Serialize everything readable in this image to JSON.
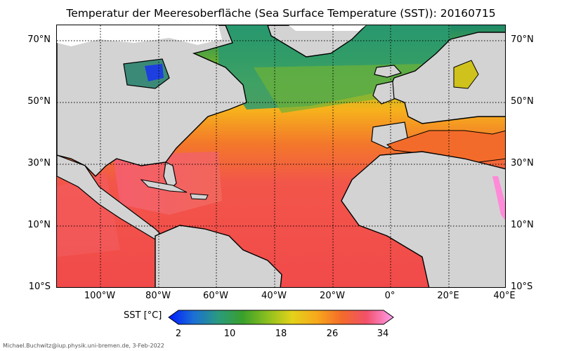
{
  "title": "Temperatur der Meeresoberfläche (Sea Surface Temperature (SST)):  20160715",
  "map": {
    "lon_range": [
      -115,
      40
    ],
    "lat_range": [
      -10,
      75
    ],
    "gridlines": "dotted",
    "land_color": "#d3d3d3",
    "sea_ice_color": "#ffffff"
  },
  "latitude_labels": [
    "70°N",
    "50°N",
    "30°N",
    "10°N",
    "10°S"
  ],
  "longitude_labels": [
    "100°W",
    "80°W",
    "60°W",
    "40°W",
    "20°W",
    "0°",
    "20°E",
    "40°E"
  ],
  "colorbar": {
    "label": "SST [°C]",
    "range": [
      2,
      34
    ],
    "ticks": [
      "2",
      "10",
      "18",
      "26",
      "34"
    ],
    "colors": [
      "#0019ff",
      "#1b6fd6",
      "#2a9a80",
      "#3aa02a",
      "#8cbf1e",
      "#e4d21a",
      "#f7a81c",
      "#f36b2a",
      "#f2506a",
      "#ff9eee"
    ]
  },
  "credit": "Michael.Buchwitz@iup.physik.uni-bremen.de, 3-Feb-2022"
}
